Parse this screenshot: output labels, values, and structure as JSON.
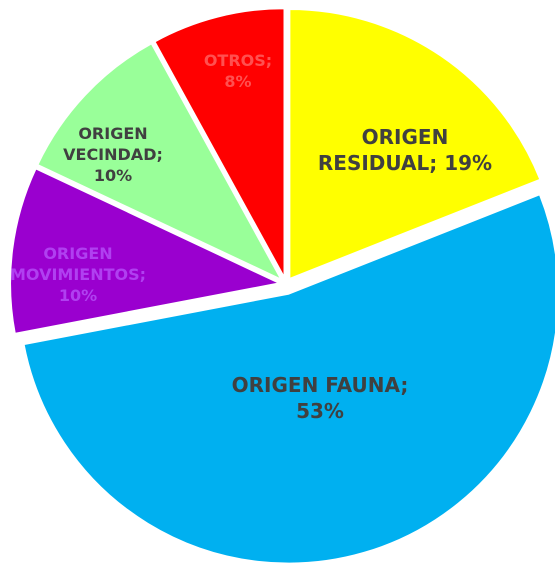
{
  "chart_data": {
    "type": "pie",
    "categories": [
      "ORIGEN RESIDUAL;",
      "ORIGEN FAUNA;",
      "ORIGEN MOVIMIENTOS;",
      "ORIGEN VECINDAD;",
      "OTROS;"
    ],
    "values": [
      19,
      53,
      10,
      10,
      8
    ],
    "value_labels": [
      "19%",
      "53%",
      "10%",
      "10%",
      "8%"
    ],
    "colors": [
      "#ffff00",
      "#00b0f0",
      "#9a00cf",
      "#99ff99",
      "#ff0000"
    ]
  }
}
